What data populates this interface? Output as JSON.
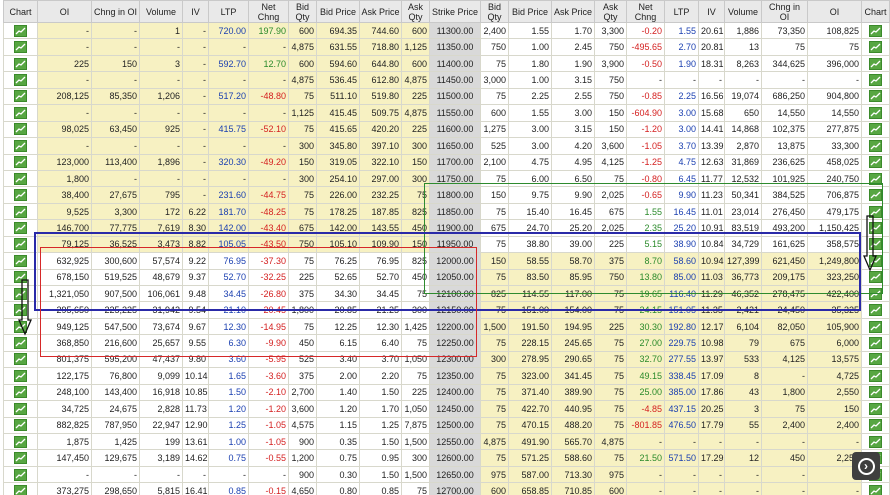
{
  "headers": [
    "Chart",
    "OI",
    "Chng in OI",
    "Volume",
    "IV",
    "LTP",
    "Net Chng",
    "Bid Qty",
    "Bid Price",
    "Ask Price",
    "Ask Qty",
    "Strike Price",
    "Bid Qty",
    "Bid Price",
    "Ask Price",
    "Ask Qty",
    "Net Chng",
    "LTP",
    "IV",
    "Volume",
    "Chng in OI",
    "OI",
    "Chart"
  ],
  "rows": [
    {
      "calls": [
        "-",
        "-",
        "1",
        "-",
        "720.00",
        "197.90",
        "600",
        "694.35",
        "744.60",
        "600"
      ],
      "strike": "11300.00",
      "puts": [
        "2,400",
        "1.55",
        "1.70",
        "3,300",
        "-0.20",
        "1.55",
        "20.61",
        "1,886",
        "73,350",
        "108,825"
      ]
    },
    {
      "calls": [
        "-",
        "-",
        "-",
        "-",
        "-",
        "-",
        "4,875",
        "631.55",
        "718.80",
        "1,125"
      ],
      "strike": "11350.00",
      "puts": [
        "750",
        "1.00",
        "2.45",
        "750",
        "-495.65",
        "2.70",
        "20.81",
        "13",
        "75",
        "75"
      ]
    },
    {
      "calls": [
        "225",
        "150",
        "3",
        "-",
        "592.70",
        "12.70",
        "600",
        "594.60",
        "644.80",
        "600"
      ],
      "strike": "11400.00",
      "puts": [
        "75",
        "1.80",
        "1.90",
        "3,900",
        "-0.50",
        "1.90",
        "18.31",
        "8,263",
        "344,625",
        "396,000"
      ]
    },
    {
      "calls": [
        "-",
        "-",
        "-",
        "-",
        "-",
        "-",
        "4,875",
        "536.45",
        "612.80",
        "4,875"
      ],
      "strike": "11450.00",
      "puts": [
        "3,000",
        "1.00",
        "3.15",
        "750",
        "-",
        "-",
        "-",
        "-",
        "-",
        "-"
      ]
    },
    {
      "calls": [
        "208,125",
        "85,350",
        "1,206",
        "-",
        "517.20",
        "-48.80",
        "75",
        "511.10",
        "519.80",
        "225"
      ],
      "strike": "11500.00",
      "puts": [
        "75",
        "2.25",
        "2.55",
        "750",
        "-0.85",
        "2.25",
        "16.56",
        "19,074",
        "686,250",
        "904,800"
      ]
    },
    {
      "calls": [
        "-",
        "-",
        "-",
        "-",
        "-",
        "-",
        "1,125",
        "415.45",
        "509.75",
        "4,875"
      ],
      "strike": "11550.00",
      "puts": [
        "600",
        "1.55",
        "3.00",
        "150",
        "-604.90",
        "3.00",
        "15.68",
        "650",
        "14,550",
        "14,550"
      ]
    },
    {
      "calls": [
        "98,025",
        "63,450",
        "925",
        "-",
        "415.75",
        "-52.10",
        "75",
        "415.65",
        "420.20",
        "225"
      ],
      "strike": "11600.00",
      "puts": [
        "1,275",
        "3.00",
        "3.15",
        "150",
        "-1.20",
        "3.00",
        "14.41",
        "14,868",
        "102,375",
        "277,875"
      ]
    },
    {
      "calls": [
        "-",
        "-",
        "-",
        "-",
        "-",
        "-",
        "300",
        "345.80",
        "397.10",
        "300"
      ],
      "strike": "11650.00",
      "puts": [
        "525",
        "3.00",
        "4.20",
        "3,600",
        "-1.05",
        "3.70",
        "13.39",
        "2,870",
        "13,875",
        "33,300"
      ]
    },
    {
      "calls": [
        "123,000",
        "113,400",
        "1,896",
        "-",
        "320.30",
        "-49.20",
        "150",
        "319.05",
        "322.10",
        "150"
      ],
      "strike": "11700.00",
      "puts": [
        "2,100",
        "4.75",
        "4.95",
        "4,125",
        "-1.25",
        "4.75",
        "12.63",
        "31,869",
        "236,625",
        "458,025"
      ]
    },
    {
      "calls": [
        "1,800",
        "-",
        "-",
        "-",
        "-",
        "-",
        "300",
        "254.10",
        "297.00",
        "300"
      ],
      "strike": "11750.00",
      "puts": [
        "75",
        "6.00",
        "6.50",
        "75",
        "-0.80",
        "6.45",
        "11.77",
        "12,532",
        "101,925",
        "240,750"
      ]
    },
    {
      "calls": [
        "38,400",
        "27,675",
        "795",
        "-",
        "231.60",
        "-44.75",
        "75",
        "226.00",
        "232.25",
        "75"
      ],
      "strike": "11800.00",
      "puts": [
        "150",
        "9.75",
        "9.90",
        "2,025",
        "-0.65",
        "9.90",
        "11.23",
        "50,341",
        "384,525",
        "706,875"
      ]
    },
    {
      "calls": [
        "9,525",
        "3,300",
        "172",
        "6.22",
        "181.70",
        "-48.25",
        "75",
        "178.25",
        "187.85",
        "825"
      ],
      "strike": "11850.00",
      "puts": [
        "75",
        "15.40",
        "16.45",
        "675",
        "1.55",
        "16.45",
        "11.01",
        "23,014",
        "276,450",
        "479,175"
      ]
    },
    {
      "calls": [
        "146,700",
        "77,775",
        "7,619",
        "8.30",
        "142.00",
        "-43.40",
        "675",
        "142.00",
        "143.55",
        "450"
      ],
      "strike": "11900.00",
      "puts": [
        "675",
        "24.70",
        "25.20",
        "2,025",
        "2.35",
        "25.20",
        "10.91",
        "83,519",
        "493,200",
        "1,150,425"
      ]
    },
    {
      "calls": [
        "79,125",
        "36,525",
        "3,473",
        "8.82",
        "105.05",
        "-43.50",
        "750",
        "105.10",
        "109.90",
        "150"
      ],
      "strike": "11950.00",
      "puts": [
        "75",
        "38.80",
        "39.00",
        "225",
        "5.15",
        "38.90",
        "10.84",
        "34,729",
        "161,625",
        "358,575"
      ]
    },
    {
      "calls": [
        "632,925",
        "300,600",
        "57,574",
        "9.22",
        "76.95",
        "-37.30",
        "75",
        "76.25",
        "76.95",
        "825"
      ],
      "strike": "12000.00",
      "puts": [
        "150",
        "58.55",
        "58.70",
        "375",
        "8.70",
        "58.60",
        "10.94",
        "127,399",
        "621,450",
        "1,249,800"
      ]
    },
    {
      "calls": [
        "678,150",
        "519,525",
        "48,679",
        "9.37",
        "52.70",
        "-32.25",
        "225",
        "52.65",
        "52.70",
        "450"
      ],
      "strike": "12050.00",
      "puts": [
        "75",
        "83.50",
        "85.95",
        "750",
        "13.80",
        "85.00",
        "11.03",
        "36,773",
        "209,175",
        "323,250"
      ]
    },
    {
      "calls": [
        "1,321,050",
        "907,500",
        "106,061",
        "9.48",
        "34.45",
        "-26.80",
        "375",
        "34.30",
        "34.45",
        "75"
      ],
      "strike": "12100.00",
      "puts": [
        "825",
        "114.55",
        "117.00",
        "75",
        "19.65",
        "116.40",
        "11.29",
        "46,352",
        "278,475",
        "422,400"
      ]
    },
    {
      "calls": [
        "295,650",
        "225,225",
        "31,942",
        "9.54",
        "21.10",
        "-20.45",
        "1,800",
        "20.85",
        "21.25",
        "300"
      ],
      "strike": "12150.00",
      "puts": [
        "75",
        "151.00",
        "154.00",
        "75",
        "24.15",
        "151.05",
        "11.35",
        "2,421",
        "24,450",
        "35,325"
      ]
    },
    {
      "calls": [
        "949,125",
        "547,500",
        "73,674",
        "9.67",
        "12.30",
        "-14.95",
        "75",
        "12.25",
        "12.30",
        "1,425"
      ],
      "strike": "12200.00",
      "puts": [
        "1,500",
        "191.50",
        "194.95",
        "225",
        "30.30",
        "192.80",
        "12.17",
        "6,104",
        "82,050",
        "105,900"
      ]
    },
    {
      "calls": [
        "368,850",
        "216,600",
        "25,657",
        "9.55",
        "6.30",
        "-9.90",
        "450",
        "6.15",
        "6.40",
        "75"
      ],
      "strike": "12250.00",
      "puts": [
        "75",
        "228.15",
        "245.65",
        "75",
        "27.00",
        "229.75",
        "10.98",
        "79",
        "675",
        "6,000"
      ]
    },
    {
      "calls": [
        "801,375",
        "595,200",
        "47,437",
        "9.80",
        "3.60",
        "-5.95",
        "525",
        "3.40",
        "3.70",
        "1,050"
      ],
      "strike": "12300.00",
      "puts": [
        "300",
        "278.95",
        "290.65",
        "75",
        "32.70",
        "277.55",
        "13.97",
        "533",
        "4,125",
        "13,575"
      ]
    },
    {
      "calls": [
        "122,175",
        "76,800",
        "9,099",
        "10.14",
        "1.65",
        "-3.60",
        "375",
        "2.00",
        "2.20",
        "75"
      ],
      "strike": "12350.00",
      "puts": [
        "75",
        "323.00",
        "341.45",
        "75",
        "49.15",
        "338.45",
        "17.09",
        "8",
        "-",
        "4,725"
      ]
    },
    {
      "calls": [
        "248,100",
        "143,400",
        "16,918",
        "10.85",
        "1.50",
        "-2.10",
        "2,700",
        "1.40",
        "1.50",
        "225"
      ],
      "strike": "12400.00",
      "puts": [
        "75",
        "371.40",
        "389.90",
        "75",
        "25.00",
        "385.00",
        "17.86",
        "43",
        "1,800",
        "2,550"
      ]
    },
    {
      "calls": [
        "34,725",
        "24,675",
        "2,828",
        "11.73",
        "1.20",
        "-1.20",
        "3,600",
        "1.20",
        "1.70",
        "1,050"
      ],
      "strike": "12450.00",
      "puts": [
        "75",
        "422.70",
        "440.95",
        "75",
        "-4.85",
        "437.15",
        "20.25",
        "3",
        "75",
        "150"
      ]
    },
    {
      "calls": [
        "882,825",
        "787,950",
        "22,947",
        "12.90",
        "1.25",
        "-1.05",
        "4,575",
        "1.15",
        "1.25",
        "7,875"
      ],
      "strike": "12500.00",
      "puts": [
        "75",
        "470.15",
        "488.20",
        "75",
        "-801.85",
        "476.50",
        "17.79",
        "55",
        "2,400",
        "2,400"
      ]
    },
    {
      "calls": [
        "1,875",
        "1,425",
        "199",
        "13.61",
        "1.00",
        "-1.05",
        "900",
        "0.35",
        "1.50",
        "1,500"
      ],
      "strike": "12550.00",
      "puts": [
        "4,875",
        "491.90",
        "565.70",
        "4,875",
        "-",
        "-",
        "-",
        "-",
        "-",
        "-"
      ]
    },
    {
      "calls": [
        "147,450",
        "129,675",
        "3,189",
        "14.62",
        "0.75",
        "-0.55",
        "1,200",
        "0.75",
        "0.95",
        "300"
      ],
      "strike": "12600.00",
      "puts": [
        "75",
        "571.25",
        "588.60",
        "75",
        "21.50",
        "571.50",
        "17.29",
        "12",
        "450",
        "2,250"
      ]
    },
    {
      "calls": [
        "-",
        "-",
        "-",
        "-",
        "-",
        "-",
        "900",
        "0.30",
        "1.50",
        "1,500"
      ],
      "strike": "12650.00",
      "puts": [
        "975",
        "587.00",
        "713.30",
        "975",
        "-",
        "-",
        "-",
        "-",
        "-",
        "-"
      ]
    },
    {
      "calls": [
        "373,275",
        "298,650",
        "5,815",
        "16.41",
        "0.85",
        "-0.15",
        "4,650",
        "0.80",
        "0.85",
        "75"
      ],
      "strike": "12700.00",
      "puts": [
        "600",
        "658.85",
        "710.85",
        "600",
        "-",
        "-",
        "-",
        "-",
        "-",
        "-"
      ]
    }
  ],
  "colors": {
    "itm": "#f7f1c2",
    "otm": "#ffffff",
    "strike": "#d9d9d9",
    "negative": "#d42020",
    "positive": "#2a8a2a",
    "ltp": "#1a3fb0",
    "green_box": "#2e8b2e",
    "blue_box": "#2a2aa8",
    "red_box": "#d62828"
  },
  "icons": {
    "chart": "chart-icon",
    "next": "next-arrow-icon",
    "arrow": "down-arrow-icon"
  }
}
